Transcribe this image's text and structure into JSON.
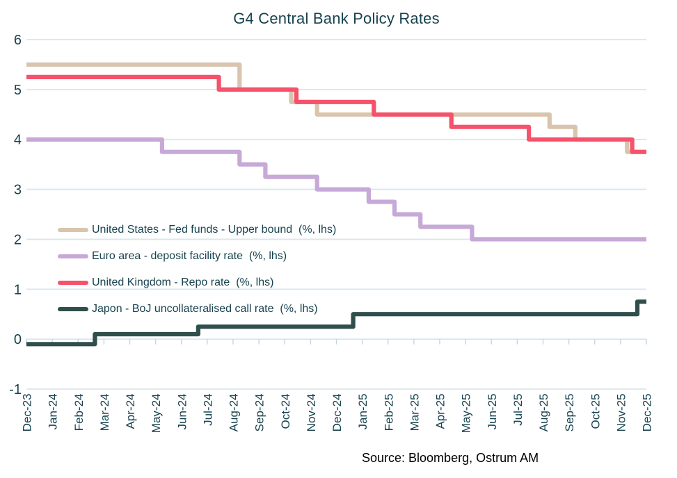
{
  "title": "G4 Central Bank Policy Rates",
  "source": "Source: Bloomberg, Ostrum AM",
  "colors": {
    "text": "#17424f",
    "grid": "#d9e6ed",
    "axis_tick": "#c3d6df",
    "background": "#ffffff",
    "source_text": "#000000"
  },
  "chart_data": {
    "type": "line",
    "subtype": "step",
    "title": "G4 Central Bank Policy Rates",
    "xlabel": "",
    "ylabel": "",
    "ylim": [
      -1,
      6
    ],
    "yticks": [
      6,
      5,
      4,
      3,
      2,
      1,
      0,
      -1
    ],
    "grid": true,
    "legend_position": "inside-left",
    "x": [
      "Dec-23",
      "Jan-24",
      "Feb-24",
      "Mar-24",
      "Apr-24",
      "May-24",
      "Jun-24",
      "Jul-24",
      "Aug-24",
      "Sep-24",
      "Oct-24",
      "Nov-24",
      "Dec-24",
      "Jan-25",
      "Feb-25",
      "Mar-25",
      "Apr-25",
      "May-25",
      "Jun-25",
      "Jul-25",
      "Aug-25",
      "Sep-25",
      "Oct-25",
      "Nov-25",
      "Dec-25"
    ],
    "series": [
      {
        "key": "us",
        "name": "United States - Fed funds - Upper bound  (%, lhs)",
        "color": "#d9c4ae",
        "step_offset": 0.75,
        "values": [
          5.5,
          5.5,
          5.5,
          5.5,
          5.5,
          5.5,
          5.5,
          5.5,
          5.5,
          5.0,
          5.0,
          4.75,
          4.5,
          4.5,
          4.5,
          4.5,
          4.5,
          4.5,
          4.5,
          4.5,
          4.5,
          4.25,
          4.0,
          4.0,
          3.75
        ]
      },
      {
        "key": "euro",
        "name": "Euro area - deposit facility rate  (%, lhs)",
        "color": "#c7a9d7",
        "step_offset": 0.75,
        "values": [
          4.0,
          4.0,
          4.0,
          4.0,
          4.0,
          4.0,
          3.75,
          3.75,
          3.75,
          3.5,
          3.25,
          3.25,
          3.0,
          3.0,
          2.75,
          2.5,
          2.25,
          2.25,
          2.0,
          2.0,
          2.0,
          2.0,
          2.0,
          2.0,
          2.0
        ]
      },
      {
        "key": "uk",
        "name": "United Kingdom - Repo rate  (%, lhs)",
        "color": "#f5526b",
        "step_offset": 0.55,
        "values": [
          5.25,
          5.25,
          5.25,
          5.25,
          5.25,
          5.25,
          5.25,
          5.25,
          5.0,
          5.0,
          5.0,
          4.75,
          4.75,
          4.75,
          4.5,
          4.5,
          4.5,
          4.25,
          4.25,
          4.25,
          4.0,
          4.0,
          4.0,
          4.0,
          3.75
        ]
      },
      {
        "key": "japan",
        "name": "Japon - BoJ uncollateralised call rate  (%, lhs)",
        "color": "#2f4e4c",
        "step_offset": 0.35,
        "values": [
          -0.1,
          -0.1,
          -0.1,
          0.1,
          0.1,
          0.1,
          0.1,
          0.25,
          0.25,
          0.25,
          0.25,
          0.25,
          0.25,
          0.5,
          0.5,
          0.5,
          0.5,
          0.5,
          0.5,
          0.5,
          0.5,
          0.5,
          0.5,
          0.5,
          0.75
        ]
      }
    ]
  }
}
